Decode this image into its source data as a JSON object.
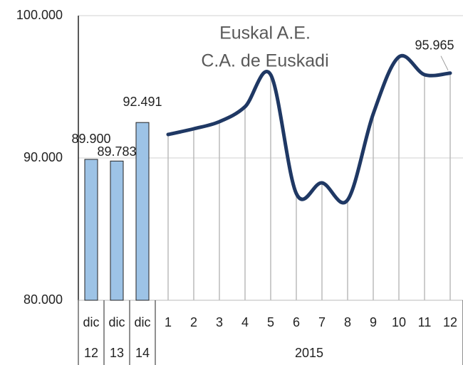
{
  "chart_data": {
    "type": "bar-line",
    "title": "Euskal A.E.",
    "subtitle": "C.A. de Euskadi",
    "categories": [
      "dic",
      "dic",
      "dic",
      "1",
      "2",
      "3",
      "4",
      "5",
      "6",
      "7",
      "8",
      "9",
      "10",
      "11",
      "12"
    ],
    "category_groups": [
      {
        "label": "12",
        "span": 1
      },
      {
        "label": "13",
        "span": 1
      },
      {
        "label": "14",
        "span": 1
      },
      {
        "label": "2015",
        "span": 12
      }
    ],
    "series": [
      {
        "name": "dic",
        "type": "bar",
        "color": "#9dc3e6",
        "values": [
          89900,
          89783,
          92491,
          null,
          null,
          null,
          null,
          null,
          null,
          null,
          null,
          null,
          null,
          null,
          null
        ],
        "value_labels": [
          "89.900",
          "89.783",
          "92.491",
          null,
          null,
          null,
          null,
          null,
          null,
          null,
          null,
          null,
          null,
          null,
          null
        ]
      },
      {
        "name": "2015",
        "type": "line",
        "color": "#1f3864",
        "values": [
          null,
          null,
          null,
          91650,
          92050,
          92550,
          93600,
          95850,
          87500,
          88250,
          87050,
          93100,
          97100,
          95850,
          95965
        ],
        "value_labels": [
          null,
          null,
          null,
          null,
          null,
          null,
          null,
          null,
          null,
          null,
          null,
          null,
          null,
          null,
          "95.965"
        ]
      }
    ],
    "ylim": [
      80000,
      100000
    ],
    "yticks": [
      {
        "value": 80000,
        "label": "80.000"
      },
      {
        "value": 90000,
        "label": "90.000"
      },
      {
        "value": 100000,
        "label": "100.000"
      }
    ],
    "grid": true,
    "drop_lines": true
  }
}
